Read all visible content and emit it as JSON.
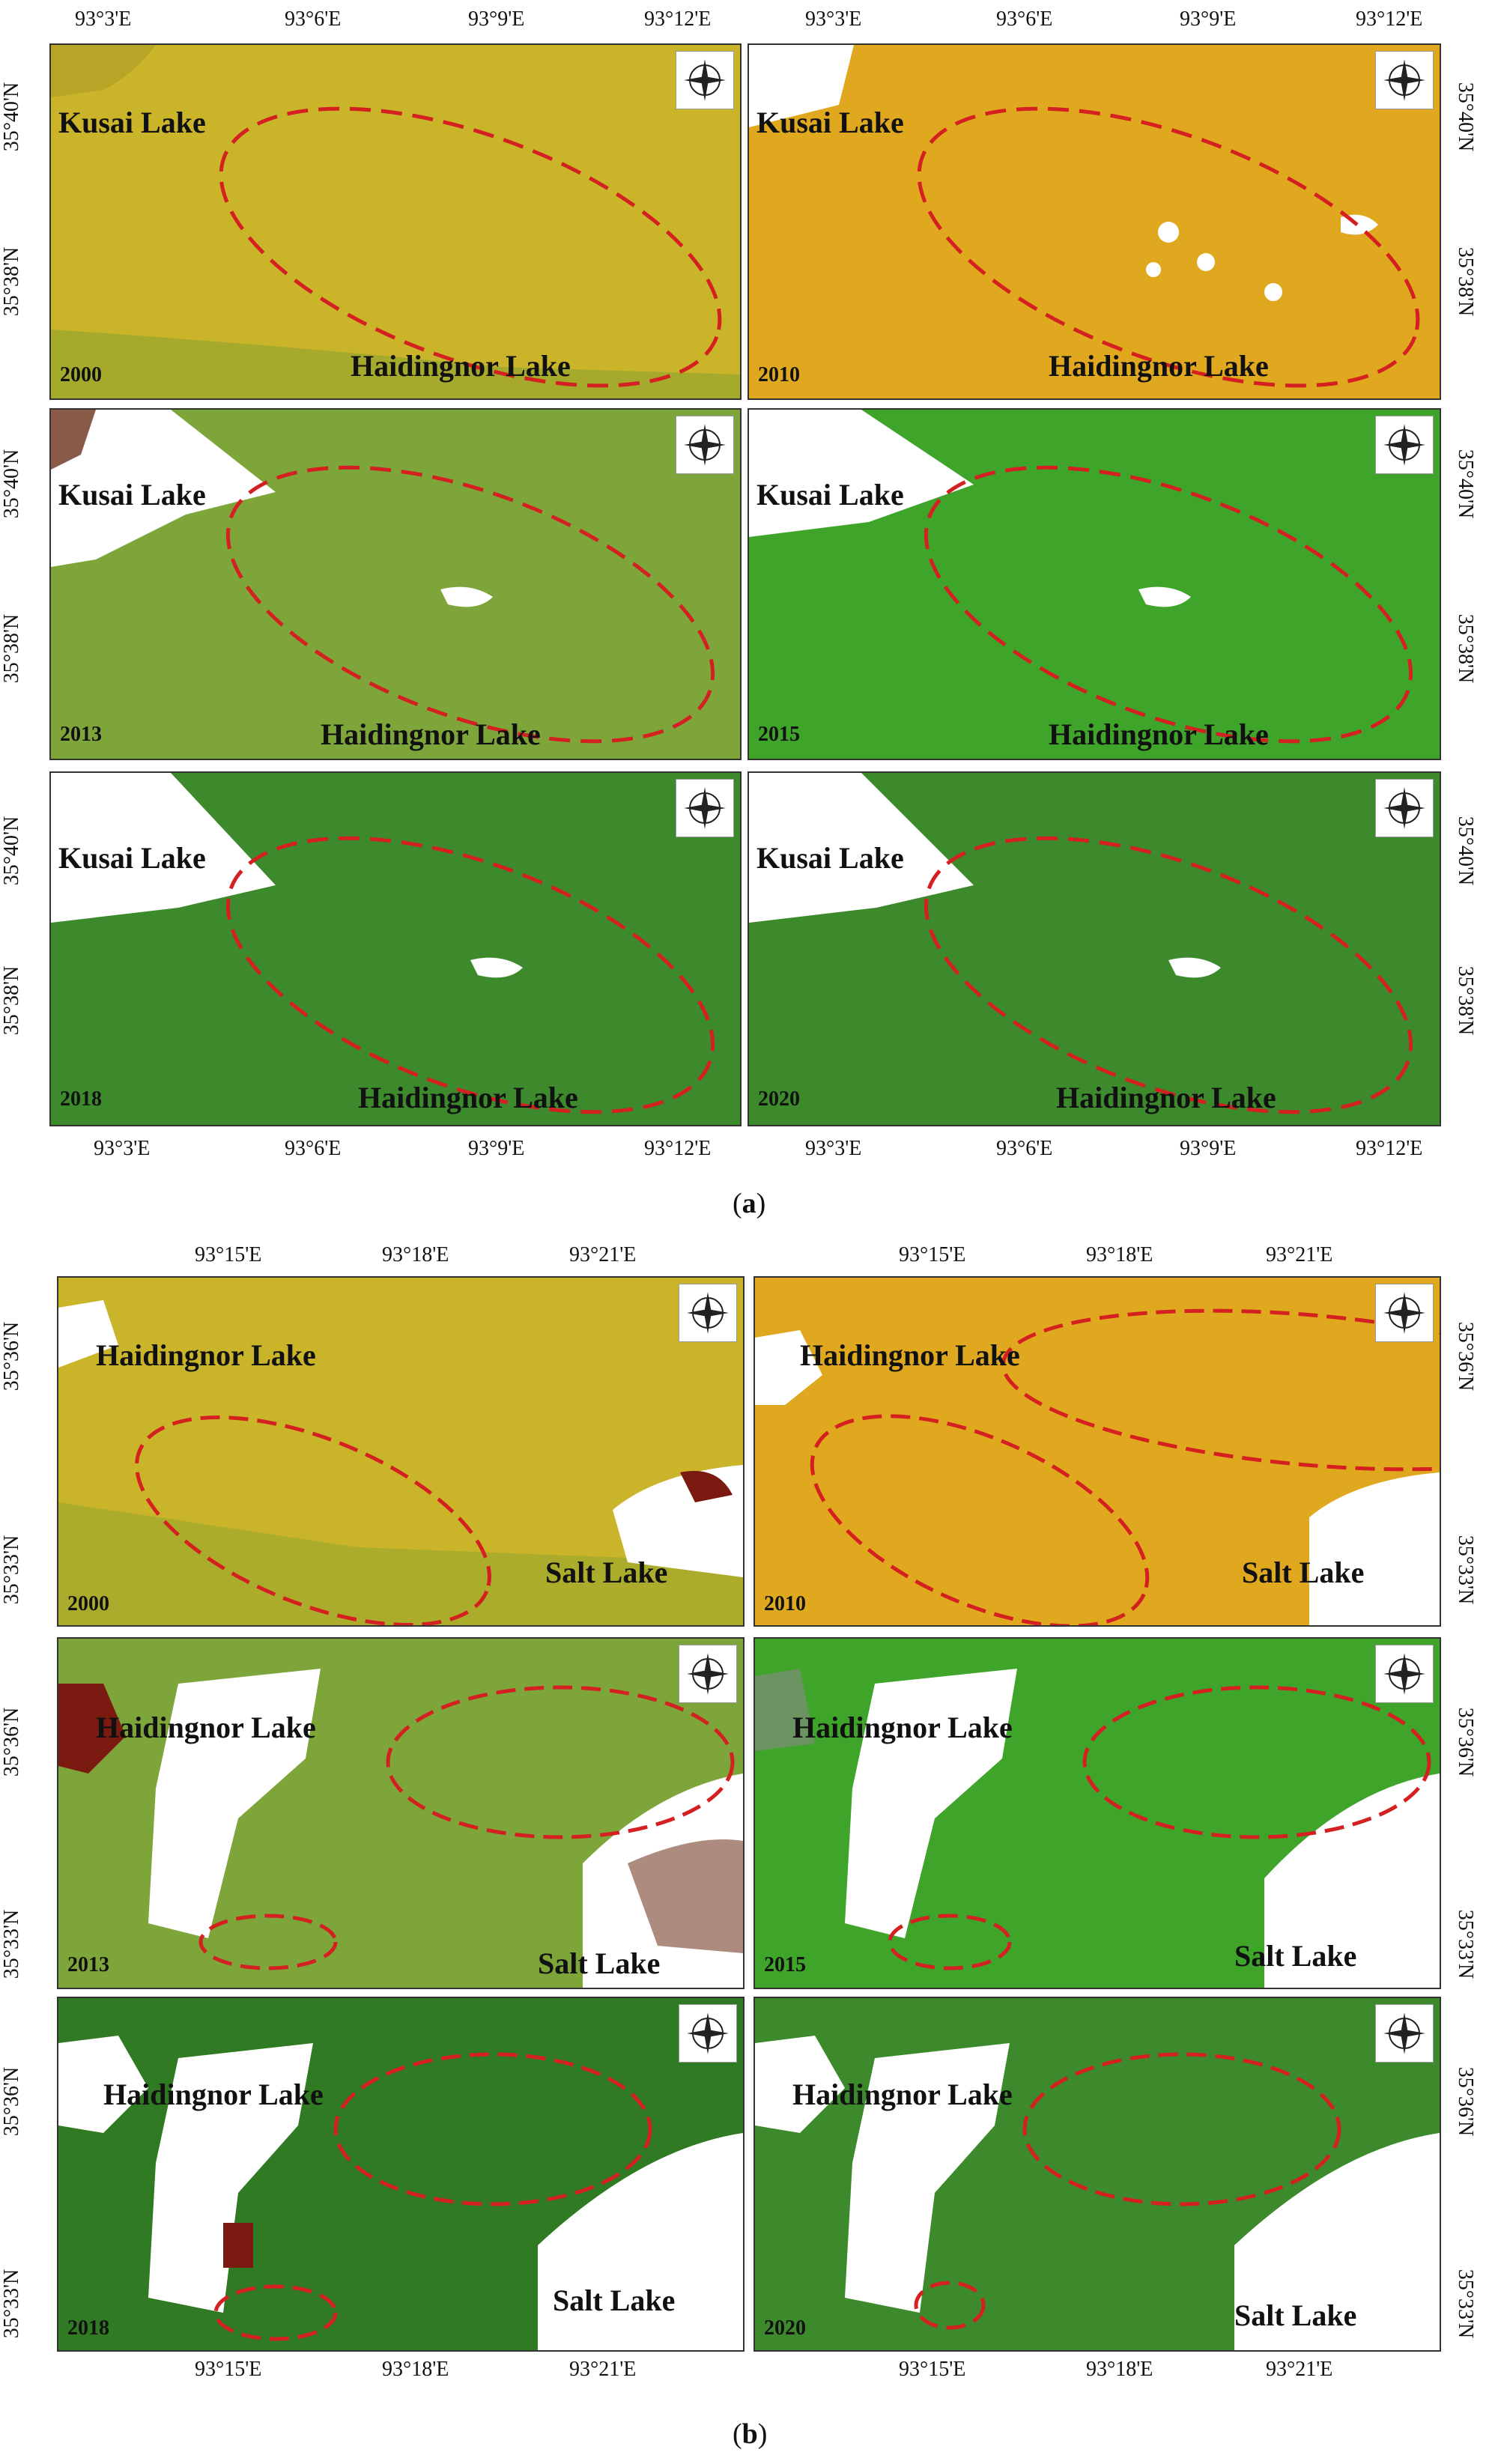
{
  "figure_a": {
    "caption_letter": "a",
    "lon_ticks_left": [
      "93°3'E",
      "93°6'E",
      "93°9'E",
      "93°12'E"
    ],
    "lon_ticks_right": [
      "93°3'E",
      "93°6'E",
      "93°9'E",
      "93°12'E"
    ],
    "lat_ticks": [
      "35°40'N",
      "35°38'N"
    ],
    "panels": [
      {
        "year": "2000",
        "palette": "yellow",
        "labels": [
          "Kusai Lake",
          "Haidingnor Lake"
        ]
      },
      {
        "year": "2010",
        "palette": "orange",
        "labels": [
          "Kusai Lake",
          "Haidingnor Lake"
        ]
      },
      {
        "year": "2013",
        "palette": "mixed",
        "labels": [
          "Kusai Lake",
          "Haidingnor Lake"
        ]
      },
      {
        "year": "2015",
        "palette": "lightgreen",
        "labels": [
          "Kusai Lake",
          "Haidingnor Lake"
        ]
      },
      {
        "year": "2018",
        "palette": "green",
        "labels": [
          "Kusai Lake",
          "Haidingnor Lake"
        ]
      },
      {
        "year": "2020",
        "palette": "green",
        "labels": [
          "Kusai Lake",
          "Haidingnor Lake"
        ]
      }
    ]
  },
  "figure_b": {
    "caption_letter": "b",
    "lon_ticks_left": [
      "93°15'E",
      "93°18'E",
      "93°21'E"
    ],
    "lon_ticks_right": [
      "93°15'E",
      "93°18'E",
      "93°21'E"
    ],
    "lat_ticks": [
      "35°36'N",
      "35°33'N"
    ],
    "panels": [
      {
        "year": "2000",
        "palette": "yellow",
        "labels": [
          "Haidingnor Lake",
          "Salt Lake"
        ]
      },
      {
        "year": "2010",
        "palette": "orange",
        "labels": [
          "Haidingnor Lake",
          "Salt Lake"
        ]
      },
      {
        "year": "2013",
        "palette": "mixed",
        "labels": [
          "Haidingnor Lake",
          "Salt Lake"
        ]
      },
      {
        "year": "2015",
        "palette": "lightgreen",
        "labels": [
          "Haidingnor Lake",
          "Salt Lake"
        ]
      },
      {
        "year": "2018",
        "palette": "darkgreen",
        "labels": [
          "Haidingnor Lake",
          "Salt Lake"
        ]
      },
      {
        "year": "2020",
        "palette": "green",
        "labels": [
          "Haidingnor Lake",
          "Salt Lake"
        ]
      }
    ]
  },
  "colors": {
    "yellow": "#c9b42a",
    "orange": "#e0a81e",
    "mixed": "#7ea53a",
    "lightgreen": "#3fa42a",
    "green": "#3c8a2c",
    "darkgreen": "#2f7a22",
    "ellipse": "#d42020",
    "water": "#ffffff",
    "saline": "#7a1a10"
  },
  "compass_icon": "compass-rose-icon"
}
